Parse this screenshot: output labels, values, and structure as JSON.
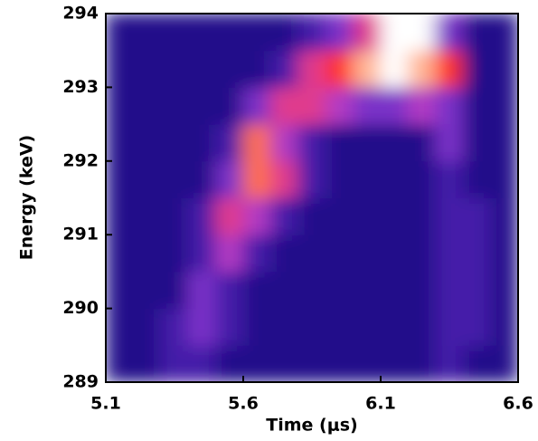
{
  "chart_data": {
    "type": "heatmap",
    "x_label": "Time (μs)",
    "y_label": "Energy (keV)",
    "x": [
      5.15,
      5.25,
      5.35,
      5.45,
      5.55,
      5.65,
      5.75,
      5.85,
      5.95,
      6.05,
      6.15,
      6.25,
      6.35,
      6.45,
      6.55
    ],
    "y": [
      289.25,
      289.75,
      290.25,
      290.75,
      291.25,
      291.75,
      292.25,
      292.75,
      293.25,
      293.75
    ],
    "z": [
      [
        1,
        1,
        2,
        2,
        1,
        1,
        1,
        1,
        1,
        1,
        1,
        1,
        2,
        1,
        1
      ],
      [
        1,
        1,
        2,
        3,
        2,
        1,
        1,
        1,
        1,
        1,
        1,
        1,
        2,
        2,
        1
      ],
      [
        1,
        1,
        1,
        3,
        2,
        1,
        1,
        1,
        1,
        1,
        1,
        1,
        2,
        2,
        1
      ],
      [
        1,
        1,
        1,
        2,
        4,
        2,
        1,
        1,
        1,
        1,
        1,
        1,
        2,
        2,
        1
      ],
      [
        1,
        1,
        1,
        2,
        5,
        4,
        2,
        1,
        1,
        1,
        1,
        1,
        2,
        2,
        1
      ],
      [
        1,
        1,
        1,
        1,
        3,
        7,
        5,
        2,
        1,
        1,
        1,
        1,
        2,
        1,
        1
      ],
      [
        1,
        1,
        1,
        1,
        2,
        7,
        4,
        2,
        1,
        1,
        1,
        1,
        3,
        1,
        1
      ],
      [
        1,
        1,
        1,
        1,
        1,
        3,
        5,
        5,
        4,
        3,
        3,
        4,
        3,
        1,
        1
      ],
      [
        1,
        1,
        1,
        1,
        1,
        1,
        2,
        5,
        6,
        8,
        9,
        8,
        6,
        1,
        1
      ],
      [
        1,
        1,
        1,
        1,
        1,
        1,
        1,
        2,
        3,
        5,
        9,
        9,
        3,
        1,
        1
      ]
    ],
    "colormap": [
      "#14086a",
      "#2a129a",
      "#7a30c8",
      "#d040c0",
      "#ff3028",
      "#ff9060",
      "#ffffff"
    ],
    "xlim": [
      5.1,
      6.6
    ],
    "ylim": [
      289,
      294
    ],
    "xticks": [
      5.1,
      5.6,
      6.1,
      6.6
    ],
    "yticks": [
      289,
      290,
      291,
      292,
      293,
      294
    ]
  }
}
